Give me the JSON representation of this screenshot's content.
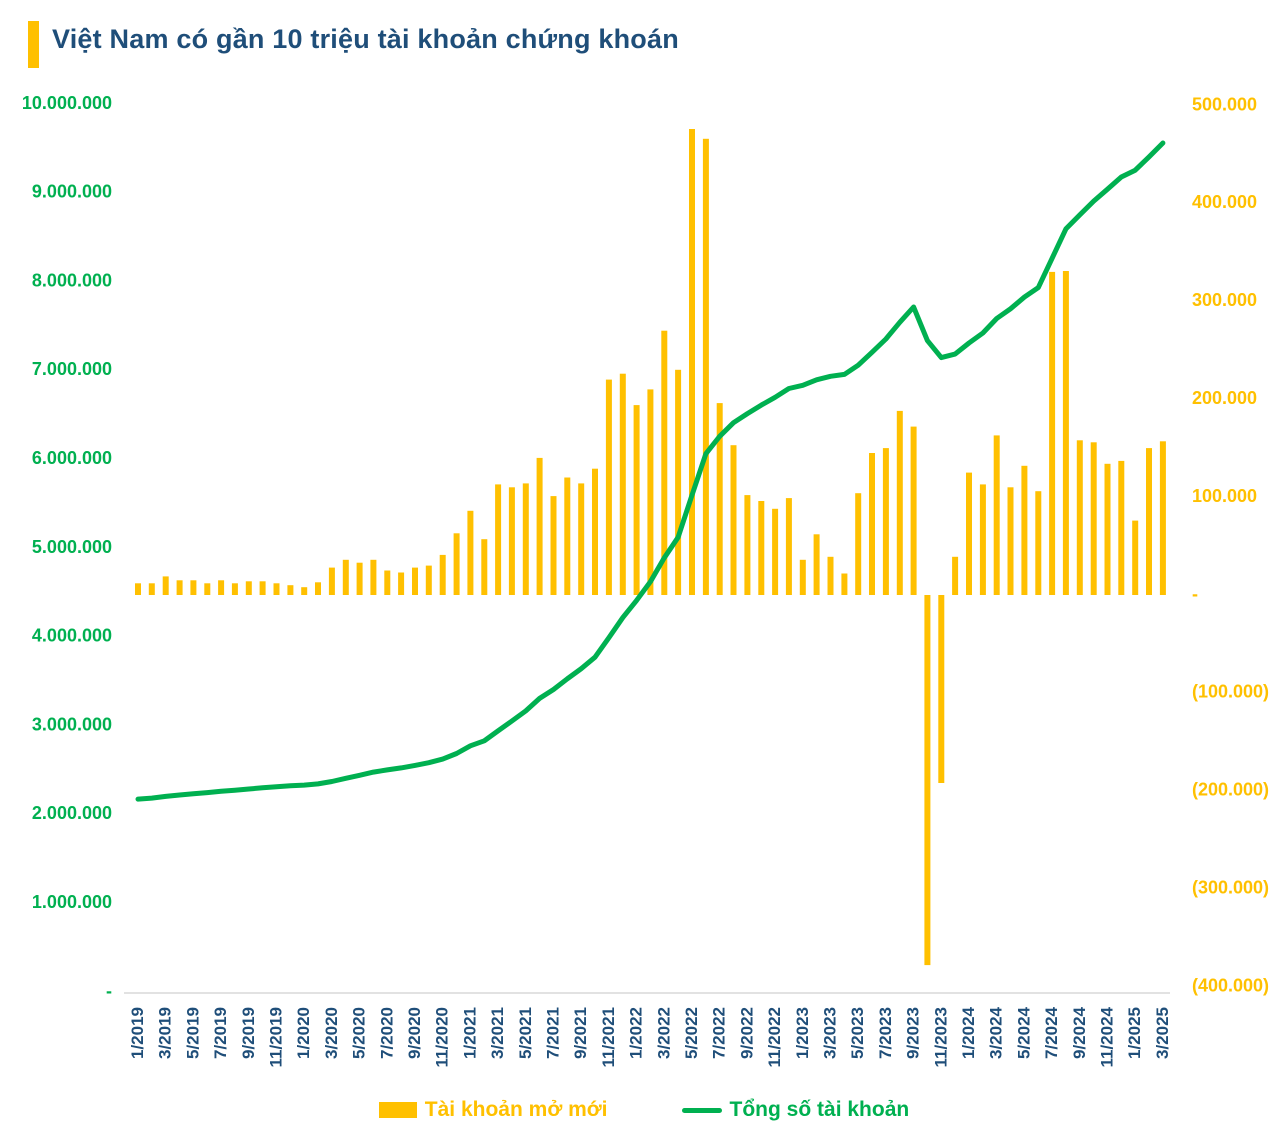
{
  "title": {
    "text": "Việt Nam có gần 10 triệu tài khoản chứng khoán"
  },
  "colors": {
    "accent_bar": "#FFC000",
    "title_text": "#1F4E79",
    "bar_series": "#FFC000",
    "line_series": "#00B050",
    "left_axis_labels": "#00B050",
    "right_axis_labels": "#FFC000",
    "x_axis_labels": "#1F4E79",
    "axis_line": "#D9D9D9"
  },
  "legend": {
    "bar_label": "Tài khoản mở mới",
    "line_label": "Tổng số tài khoản"
  },
  "chart_data": {
    "type": "bar+line combo",
    "title": "Việt Nam có gần 10 triệu tài khoản chứng khoán",
    "x_label_interval": 2,
    "grid": false,
    "legend_position": "bottom",
    "x": [
      "1/2019",
      "2/2019",
      "3/2019",
      "4/2019",
      "5/2019",
      "6/2019",
      "7/2019",
      "8/2019",
      "9/2019",
      "10/2019",
      "11/2019",
      "12/2019",
      "1/2020",
      "2/2020",
      "3/2020",
      "4/2020",
      "5/2020",
      "6/2020",
      "7/2020",
      "8/2020",
      "9/2020",
      "10/2020",
      "11/2020",
      "12/2020",
      "1/2021",
      "2/2021",
      "3/2021",
      "4/2021",
      "5/2021",
      "6/2021",
      "7/2021",
      "8/2021",
      "9/2021",
      "10/2021",
      "11/2021",
      "12/2021",
      "1/2022",
      "2/2022",
      "3/2022",
      "4/2022",
      "5/2022",
      "6/2022",
      "7/2022",
      "8/2022",
      "9/2022",
      "10/2022",
      "11/2022",
      "12/2022",
      "1/2023",
      "2/2023",
      "3/2023",
      "4/2023",
      "5/2023",
      "6/2023",
      "7/2023",
      "8/2023",
      "9/2023",
      "10/2023",
      "11/2023",
      "12/2023",
      "1/2024",
      "2/2024",
      "3/2024",
      "4/2024",
      "5/2024",
      "6/2024",
      "7/2024",
      "8/2024",
      "9/2024",
      "10/2024",
      "11/2024",
      "12/2024",
      "1/2025",
      "2/2025",
      "3/2025"
    ],
    "series": [
      {
        "name": "Tài khoản mở mới",
        "type": "bar",
        "axis": "right",
        "values": [
          12000,
          12000,
          19000,
          15000,
          15000,
          12000,
          15000,
          12000,
          14000,
          14000,
          12000,
          10000,
          8000,
          13000,
          28000,
          36000,
          33000,
          36000,
          25000,
          23000,
          28000,
          30000,
          41000,
          63000,
          86000,
          57000,
          113000,
          110000,
          114000,
          140000,
          101000,
          120000,
          114000,
          129000,
          220000,
          226000,
          194000,
          210000,
          270000,
          230000,
          476000,
          466000,
          196000,
          153000,
          102000,
          96000,
          88000,
          99000,
          36000,
          62000,
          39000,
          22000,
          104000,
          145000,
          150000,
          188000,
          172000,
          -378000,
          -192000,
          39000,
          125000,
          113000,
          163000,
          110000,
          132000,
          106000,
          330000,
          331000,
          158000,
          156000,
          134000,
          137000,
          76000,
          150000,
          157000
        ]
      },
      {
        "name": "Tổng số tài khoản",
        "type": "line",
        "axis": "left",
        "values": [
          2172000,
          2184000,
          2203000,
          2218000,
          2233000,
          2245000,
          2260000,
          2272000,
          2286000,
          2300000,
          2312000,
          2322000,
          2330000,
          2343000,
          2371000,
          2407000,
          2440000,
          2476000,
          2501000,
          2524000,
          2552000,
          2582000,
          2623000,
          2686000,
          2772000,
          2829000,
          2942000,
          3052000,
          3166000,
          3306000,
          3407000,
          3527000,
          3641000,
          3770000,
          3990000,
          4216000,
          4410000,
          4620000,
          4890000,
          5120000,
          5596000,
          6062000,
          6258000,
          6411000,
          6513000,
          6609000,
          6697000,
          6796000,
          6832000,
          6894000,
          6933000,
          6955000,
          7059000,
          7204000,
          7354000,
          7542000,
          7714000,
          7336000,
          7144000,
          7183000,
          7308000,
          7421000,
          7584000,
          7694000,
          7826000,
          7932000,
          8262000,
          8593000,
          8751000,
          8907000,
          9041000,
          9178000,
          9254000,
          9404000,
          9561000
        ]
      }
    ],
    "left_axis": {
      "min": 0,
      "max": 10000000,
      "step": 1000000,
      "labels_top_to_bottom": [
        "10.000.000",
        "9.000.000",
        "8.000.000",
        "7.000.000",
        "6.000.000",
        "5.000.000",
        "4.000.000",
        "3.000.000",
        "2.000.000",
        "1.000.000",
        "-"
      ]
    },
    "right_axis": {
      "min": -400000,
      "max": 500000,
      "step": 100000,
      "labels_top_to_bottom": [
        "500.000",
        "400.000",
        "300.000",
        "200.000",
        "100.000",
        "-",
        "(100.000)",
        "(200.000)",
        "(300.000)",
        "(400.000)"
      ]
    }
  }
}
